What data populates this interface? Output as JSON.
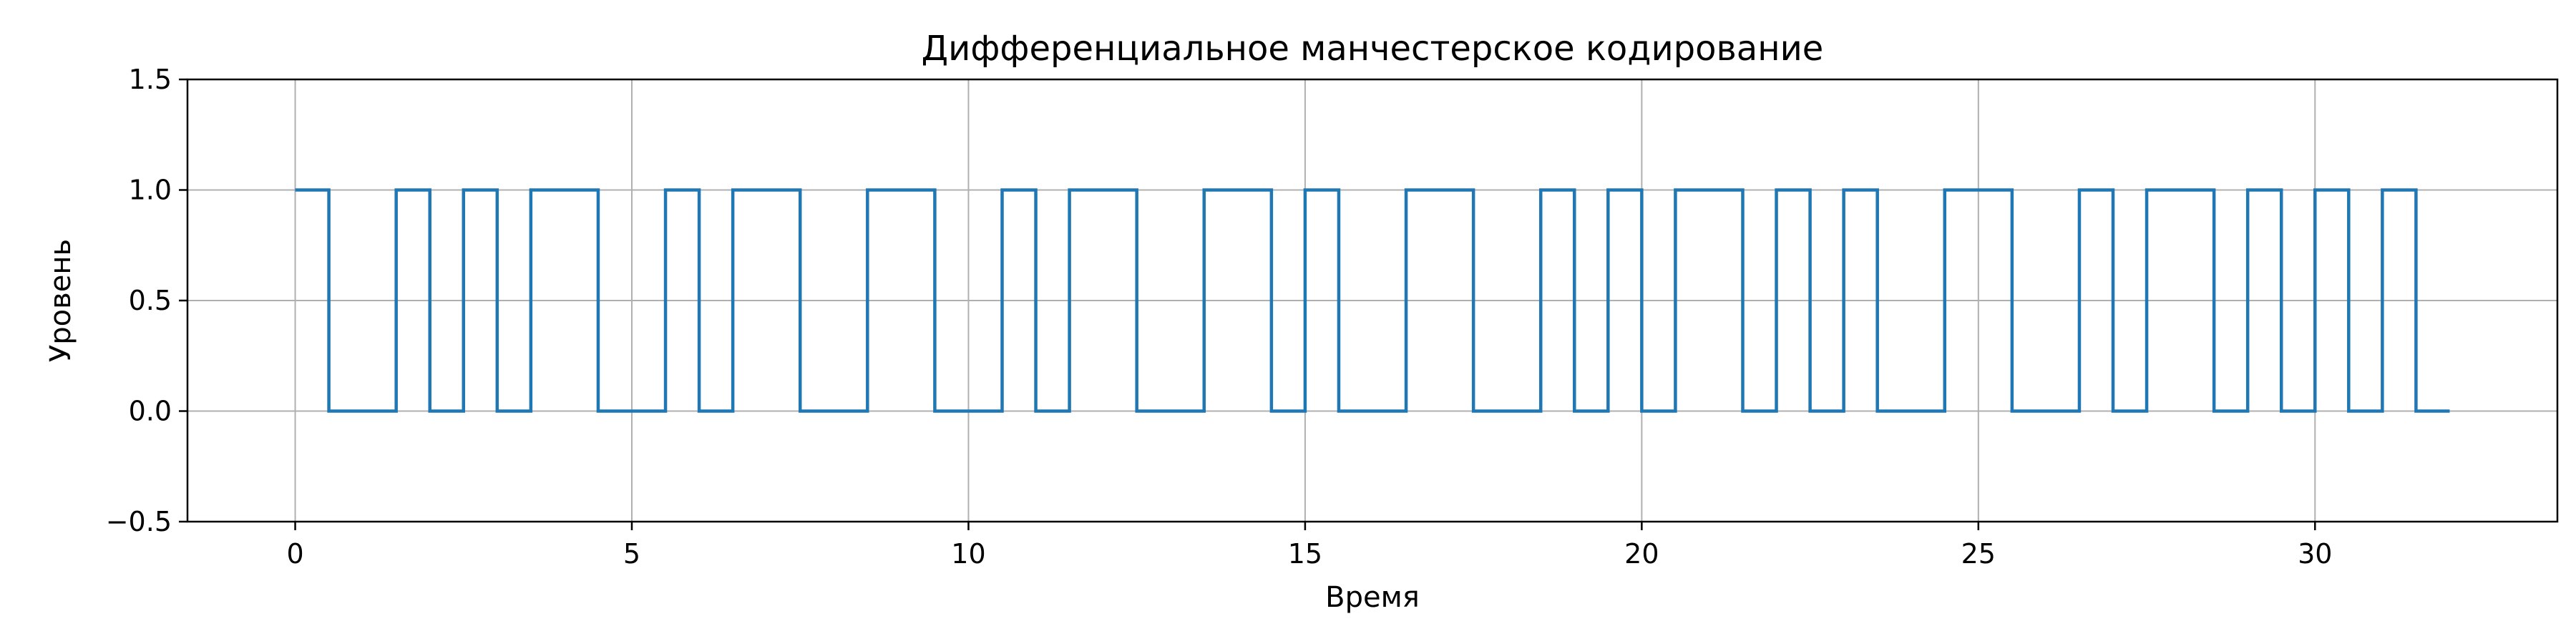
{
  "chart_data": {
    "type": "line",
    "step": "post",
    "title": "Дифференциальное манчестерское кодирование",
    "xlabel": "Время",
    "ylabel": "Уровень",
    "xlim": [
      -1.6,
      33.6
    ],
    "ylim": [
      -0.5,
      1.5
    ],
    "x_ticks": [
      0,
      5,
      10,
      15,
      20,
      25,
      30
    ],
    "x_tick_labels": [
      "0",
      "5",
      "10",
      "15",
      "20",
      "25",
      "30"
    ],
    "y_ticks": [
      -0.5,
      0.0,
      0.5,
      1.0,
      1.5
    ],
    "y_tick_labels": [
      "−0.5",
      "0.0",
      "0.5",
      "1.0",
      "1.5"
    ],
    "grid": true,
    "series": [
      {
        "color": "#1f77b4",
        "x": [
          0,
          0.5,
          1.5,
          2,
          2.5,
          3,
          3.5,
          4.5,
          5.5,
          6,
          6.5,
          7.5,
          8.5,
          9.5,
          10.5,
          11,
          11.5,
          12.5,
          13.5,
          14.5,
          15,
          15.5,
          16.5,
          17.5,
          18.5,
          19,
          19.5,
          20,
          20.5,
          21.5,
          22,
          22.5,
          23,
          23.5,
          24.5,
          25.5,
          26.5,
          27,
          27.5,
          28.5,
          29,
          29.5,
          30,
          30.5,
          31,
          31.5,
          32
        ],
        "y": [
          1,
          0,
          1,
          0,
          1,
          0,
          1,
          0,
          1,
          0,
          1,
          0,
          1,
          0,
          1,
          0,
          1,
          0,
          1,
          0,
          1,
          0,
          1,
          0,
          1,
          0,
          1,
          0,
          1,
          0,
          1,
          0,
          1,
          0,
          1,
          0,
          1,
          0,
          1,
          0,
          1,
          0,
          1,
          0,
          1,
          0,
          0
        ]
      }
    ]
  }
}
